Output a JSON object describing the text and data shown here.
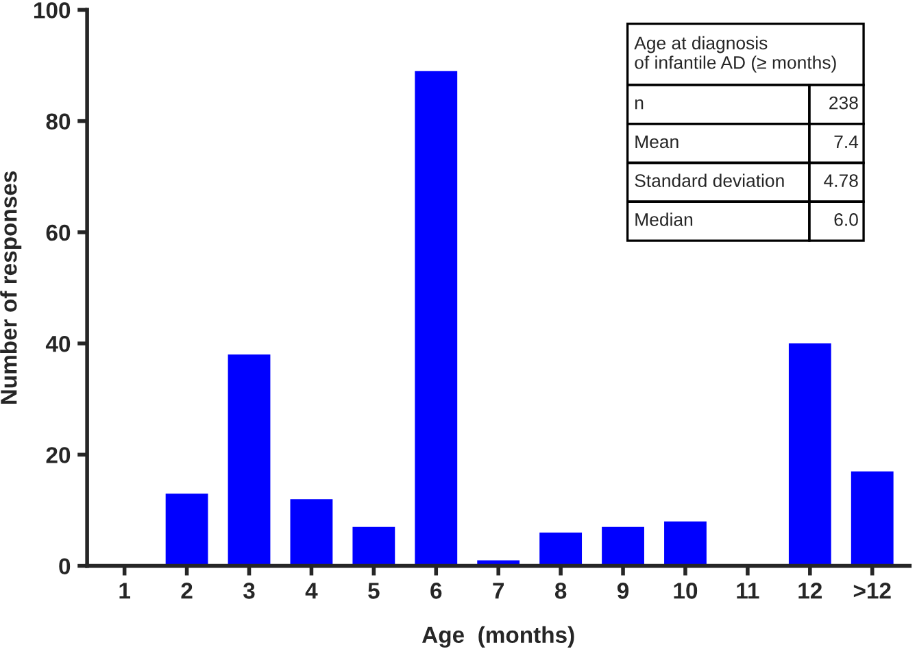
{
  "chart_data": {
    "type": "bar",
    "xlabel": "Age  (months)",
    "ylabel": "Number of responses",
    "categories": [
      "1",
      "2",
      "3",
      "4",
      "5",
      "6",
      "7",
      "8",
      "9",
      "10",
      "11",
      "12",
      ">12"
    ],
    "values": [
      0,
      13,
      38,
      12,
      7,
      89,
      1,
      6,
      7,
      8,
      0,
      40,
      17
    ],
    "color": "#0000ff",
    "ylim": [
      0,
      100
    ],
    "yticks": [
      0,
      20,
      40,
      60,
      80,
      100
    ],
    "grid": false,
    "legend": false,
    "annotations": [
      "Age at diagnosis\nof infantile AD (≥ months)",
      "n",
      "238",
      "Mean",
      "7.4",
      "Standard deviation",
      "4.78",
      "Median",
      "6.0"
    ]
  }
}
